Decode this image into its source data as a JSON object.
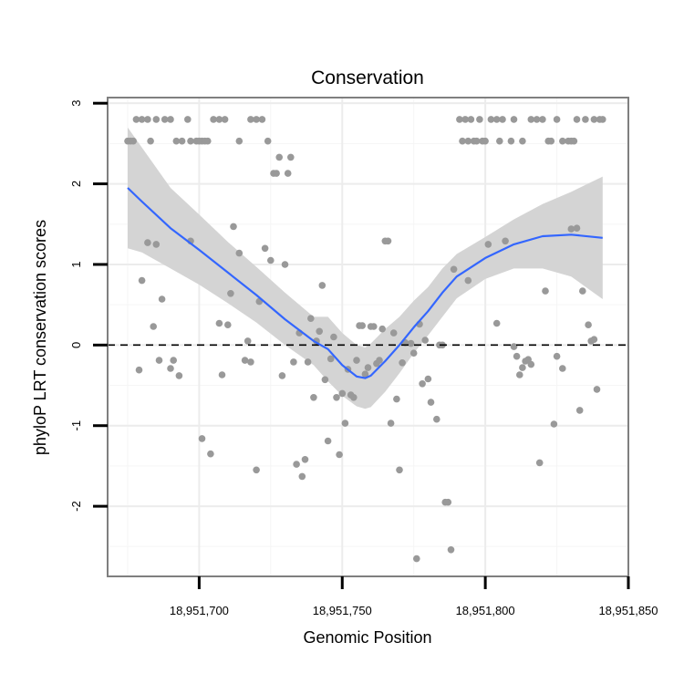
{
  "chart_data": {
    "type": "scatter",
    "title": "Conservation",
    "xlabel": "Genomic Position",
    "ylabel": "phyloP LRT conservation scores",
    "xlim": [
      18951668,
      18951850
    ],
    "ylim": [
      -2.87,
      3.07
    ],
    "x_ticks": [
      18951700,
      18951750,
      18951800,
      18951850
    ],
    "x_tick_labels": [
      "18,951,700",
      "18,951,750",
      "18,951,800",
      "18,951,850"
    ],
    "y_ticks": [
      -2,
      -1,
      0,
      1,
      2,
      3
    ],
    "y_tick_labels": [
      "-2",
      "-1",
      "0",
      "1",
      "2",
      "3"
    ],
    "x_minor_gridlines": [
      18951675,
      18951725,
      18951775,
      18951825
    ],
    "y_minor_gridlines": [
      -2.5,
      -1.5,
      -0.5,
      0.5,
      1.5,
      2.5
    ],
    "grid": true,
    "reference_line": {
      "y": 0,
      "style": "dashed",
      "color": "#000000"
    },
    "points_color": "#999999",
    "smooth_color": "#3366ff",
    "band_color": "#d4d4d4",
    "points": [
      [
        18951675,
        2.53
      ],
      [
        18951676,
        2.53
      ],
      [
        18951677,
        2.53
      ],
      [
        18951678,
        2.8
      ],
      [
        18951680,
        2.8
      ],
      [
        18951682,
        2.8
      ],
      [
        18951683,
        2.53
      ],
      [
        18951685,
        2.8
      ],
      [
        18951688,
        2.8
      ],
      [
        18951690,
        2.8
      ],
      [
        18951692,
        2.53
      ],
      [
        18951694,
        2.53
      ],
      [
        18951696,
        2.8
      ],
      [
        18951697,
        2.53
      ],
      [
        18951699,
        2.53
      ],
      [
        18951700,
        2.53
      ],
      [
        18951701,
        2.53
      ],
      [
        18951702,
        2.53
      ],
      [
        18951703,
        2.53
      ],
      [
        18951705,
        2.8
      ],
      [
        18951707,
        2.8
      ],
      [
        18951709,
        2.8
      ],
      [
        18951714,
        2.53
      ],
      [
        18951718,
        2.8
      ],
      [
        18951720,
        2.8
      ],
      [
        18951722,
        2.8
      ],
      [
        18951724,
        2.53
      ],
      [
        18951726,
        2.13
      ],
      [
        18951727,
        2.13
      ],
      [
        18951728,
        2.33
      ],
      [
        18951731,
        2.13
      ],
      [
        18951732,
        2.33
      ],
      [
        18951791,
        2.8
      ],
      [
        18951793,
        2.8
      ],
      [
        18951795,
        2.8
      ],
      [
        18951792,
        2.53
      ],
      [
        18951794,
        2.53
      ],
      [
        18951796,
        2.53
      ],
      [
        18951797,
        2.53
      ],
      [
        18951798,
        2.8
      ],
      [
        18951799,
        2.53
      ],
      [
        18951800,
        2.53
      ],
      [
        18951802,
        2.8
      ],
      [
        18951804,
        2.8
      ],
      [
        18951806,
        2.8
      ],
      [
        18951805,
        2.53
      ],
      [
        18951809,
        2.53
      ],
      [
        18951810,
        2.8
      ],
      [
        18951813,
        2.53
      ],
      [
        18951816,
        2.8
      ],
      [
        18951818,
        2.8
      ],
      [
        18951820,
        2.8
      ],
      [
        18951822,
        2.53
      ],
      [
        18951823,
        2.53
      ],
      [
        18951825,
        2.8
      ],
      [
        18951827,
        2.53
      ],
      [
        18951829,
        2.53
      ],
      [
        18951830,
        2.53
      ],
      [
        18951831,
        2.53
      ],
      [
        18951832,
        2.8
      ],
      [
        18951835,
        2.8
      ],
      [
        18951838,
        2.8
      ],
      [
        18951840,
        2.8
      ],
      [
        18951841,
        2.8
      ],
      [
        18951679,
        -0.31
      ],
      [
        18951680,
        0.8
      ],
      [
        18951682,
        1.27
      ],
      [
        18951684,
        0.23
      ],
      [
        18951685,
        1.25
      ],
      [
        18951686,
        -0.19
      ],
      [
        18951687,
        0.57
      ],
      [
        18951690,
        -0.29
      ],
      [
        18951691,
        -0.19
      ],
      [
        18951693,
        -0.38
      ],
      [
        18951697,
        1.29
      ],
      [
        18951701,
        -1.16
      ],
      [
        18951704,
        -1.35
      ],
      [
        18951707,
        0.27
      ],
      [
        18951708,
        -0.37
      ],
      [
        18951710,
        0.25
      ],
      [
        18951711,
        0.64
      ],
      [
        18951712,
        1.47
      ],
      [
        18951714,
        1.14
      ],
      [
        18951716,
        -0.19
      ],
      [
        18951717,
        0.05
      ],
      [
        18951718,
        -0.21
      ],
      [
        18951720,
        -1.55
      ],
      [
        18951721,
        0.54
      ],
      [
        18951723,
        1.2
      ],
      [
        18951725,
        1.05
      ],
      [
        18951729,
        -0.38
      ],
      [
        18951730,
        1.0
      ],
      [
        18951733,
        -0.21
      ],
      [
        18951734,
        -1.48
      ],
      [
        18951735,
        0.15
      ],
      [
        18951736,
        -1.63
      ],
      [
        18951737,
        -1.42
      ],
      [
        18951738,
        -0.21
      ],
      [
        18951739,
        0.33
      ],
      [
        18951740,
        -0.65
      ],
      [
        18951741,
        0.05
      ],
      [
        18951742,
        0.17
      ],
      [
        18951743,
        0.74
      ],
      [
        18951744,
        -0.43
      ],
      [
        18951745,
        -1.19
      ],
      [
        18951746,
        -0.17
      ],
      [
        18951747,
        0.1
      ],
      [
        18951748,
        -0.65
      ],
      [
        18951749,
        -1.36
      ],
      [
        18951750,
        -0.6
      ],
      [
        18951751,
        -0.97
      ],
      [
        18951752,
        -0.3
      ],
      [
        18951753,
        -0.62
      ],
      [
        18951754,
        -0.65
      ],
      [
        18951755,
        -0.19
      ],
      [
        18951756,
        0.24
      ],
      [
        18951757,
        0.24
      ],
      [
        18951758,
        -0.36
      ],
      [
        18951759,
        -0.28
      ],
      [
        18951760,
        0.23
      ],
      [
        18951761,
        0.23
      ],
      [
        18951762,
        -0.23
      ],
      [
        18951763,
        -0.19
      ],
      [
        18951764,
        0.2
      ],
      [
        18951765,
        1.29
      ],
      [
        18951766,
        1.29
      ],
      [
        18951767,
        -0.97
      ],
      [
        18951768,
        0.15
      ],
      [
        18951769,
        -0.67
      ],
      [
        18951770,
        -1.55
      ],
      [
        18951771,
        -0.22
      ],
      [
        18951772,
        0.03
      ],
      [
        18951774,
        0.02
      ],
      [
        18951775,
        -0.1
      ],
      [
        18951776,
        -2.65
      ],
      [
        18951777,
        0.26
      ],
      [
        18951778,
        -0.48
      ],
      [
        18951779,
        0.06
      ],
      [
        18951780,
        -0.42
      ],
      [
        18951781,
        -0.71
      ],
      [
        18951783,
        -0.92
      ],
      [
        18951784,
        0.0
      ],
      [
        18951785,
        0.0
      ],
      [
        18951786,
        -1.95
      ],
      [
        18951787,
        -1.95
      ],
      [
        18951788,
        -2.54
      ],
      [
        18951789,
        0.94
      ],
      [
        18951794,
        0.8
      ],
      [
        18951801,
        1.25
      ],
      [
        18951804,
        0.27
      ],
      [
        18951807,
        1.29
      ],
      [
        18951810,
        -0.02
      ],
      [
        18951811,
        -0.14
      ],
      [
        18951812,
        -0.37
      ],
      [
        18951813,
        -0.28
      ],
      [
        18951814,
        -0.2
      ],
      [
        18951815,
        -0.18
      ],
      [
        18951816,
        -0.24
      ],
      [
        18951819,
        -1.46
      ],
      [
        18951821,
        0.67
      ],
      [
        18951824,
        -0.98
      ],
      [
        18951825,
        -0.14
      ],
      [
        18951827,
        -0.29
      ],
      [
        18951830,
        1.44
      ],
      [
        18951832,
        1.45
      ],
      [
        18951833,
        -0.81
      ],
      [
        18951834,
        0.67
      ],
      [
        18951836,
        0.25
      ],
      [
        18951837,
        0.05
      ],
      [
        18951838,
        0.07
      ],
      [
        18951839,
        -0.55
      ]
    ],
    "smooth_fit": {
      "x": [
        18951675,
        18951680,
        18951690,
        18951700,
        18951710,
        18951720,
        18951730,
        18951740,
        18951745,
        18951750,
        18951755,
        18951758,
        18951760,
        18951765,
        18951770,
        18951775,
        18951780,
        18951785,
        18951790,
        18951800,
        18951810,
        18951820,
        18951830,
        18951841
      ],
      "y": [
        1.95,
        1.78,
        1.45,
        1.18,
        0.9,
        0.62,
        0.32,
        0.05,
        -0.05,
        -0.25,
        -0.39,
        -0.41,
        -0.38,
        -0.2,
        0.0,
        0.22,
        0.42,
        0.65,
        0.85,
        1.08,
        1.25,
        1.35,
        1.37,
        1.33
      ],
      "lower": [
        1.2,
        1.15,
        0.95,
        0.75,
        0.52,
        0.28,
        0.0,
        -0.25,
        -0.45,
        -0.63,
        -0.76,
        -0.79,
        -0.77,
        -0.58,
        -0.35,
        -0.1,
        0.12,
        0.35,
        0.58,
        0.82,
        0.95,
        0.95,
        0.85,
        0.57
      ],
      "upper": [
        2.7,
        2.45,
        1.95,
        1.62,
        1.28,
        0.97,
        0.65,
        0.35,
        0.35,
        0.15,
        0.0,
        -0.03,
        0.02,
        0.2,
        0.35,
        0.55,
        0.72,
        0.95,
        1.13,
        1.34,
        1.56,
        1.75,
        1.9,
        2.09
      ]
    }
  }
}
